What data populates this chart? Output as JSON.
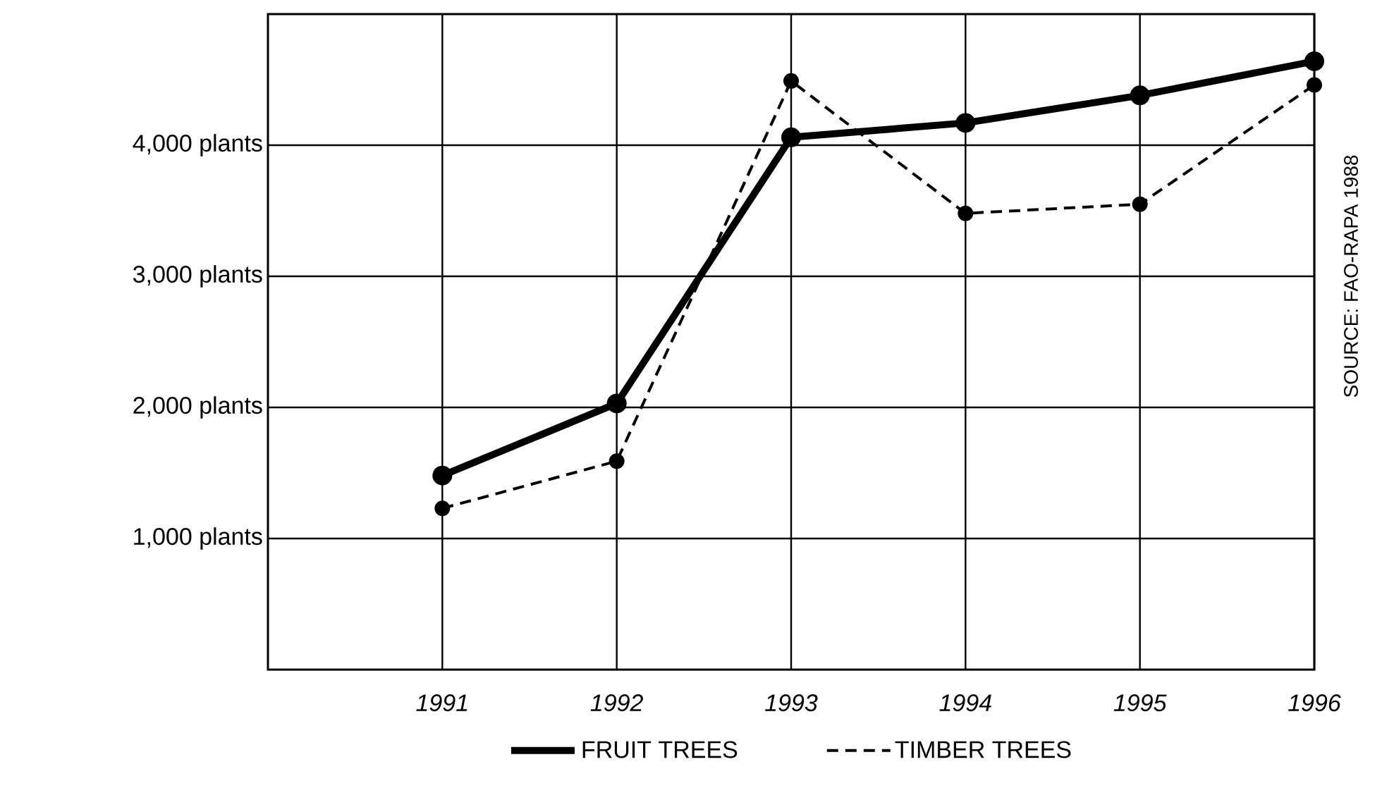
{
  "chart_data": {
    "type": "line",
    "x": [
      1991,
      1992,
      1993,
      1994,
      1995,
      1996
    ],
    "series": [
      {
        "name": "FRUIT TREES",
        "color": "#000000",
        "line_style": "solid",
        "values": [
          1480,
          2030,
          4060,
          4170,
          4380,
          4640
        ]
      },
      {
        "name": "TIMBER TREES",
        "color": "#000000",
        "line_style": "dashed",
        "values": [
          1230,
          1590,
          4490,
          3480,
          3550,
          4460
        ]
      }
    ],
    "xlim": [
      1990,
      1996
    ],
    "ylim": [
      0,
      5000
    ],
    "xticks": [
      1991,
      1992,
      1993,
      1994,
      1995,
      1996
    ],
    "yticks": [
      {
        "value": 1000,
        "label": "1,000 plants"
      },
      {
        "value": 2000,
        "label": "2,000 plants"
      },
      {
        "value": 3000,
        "label": "3,000 plants"
      },
      {
        "value": 4000,
        "label": "4,000 plants"
      }
    ],
    "grid": true,
    "legend": "bottom",
    "marker": "circle",
    "annotations": [
      "SOURCE: FAO-RAPA 1988"
    ]
  }
}
